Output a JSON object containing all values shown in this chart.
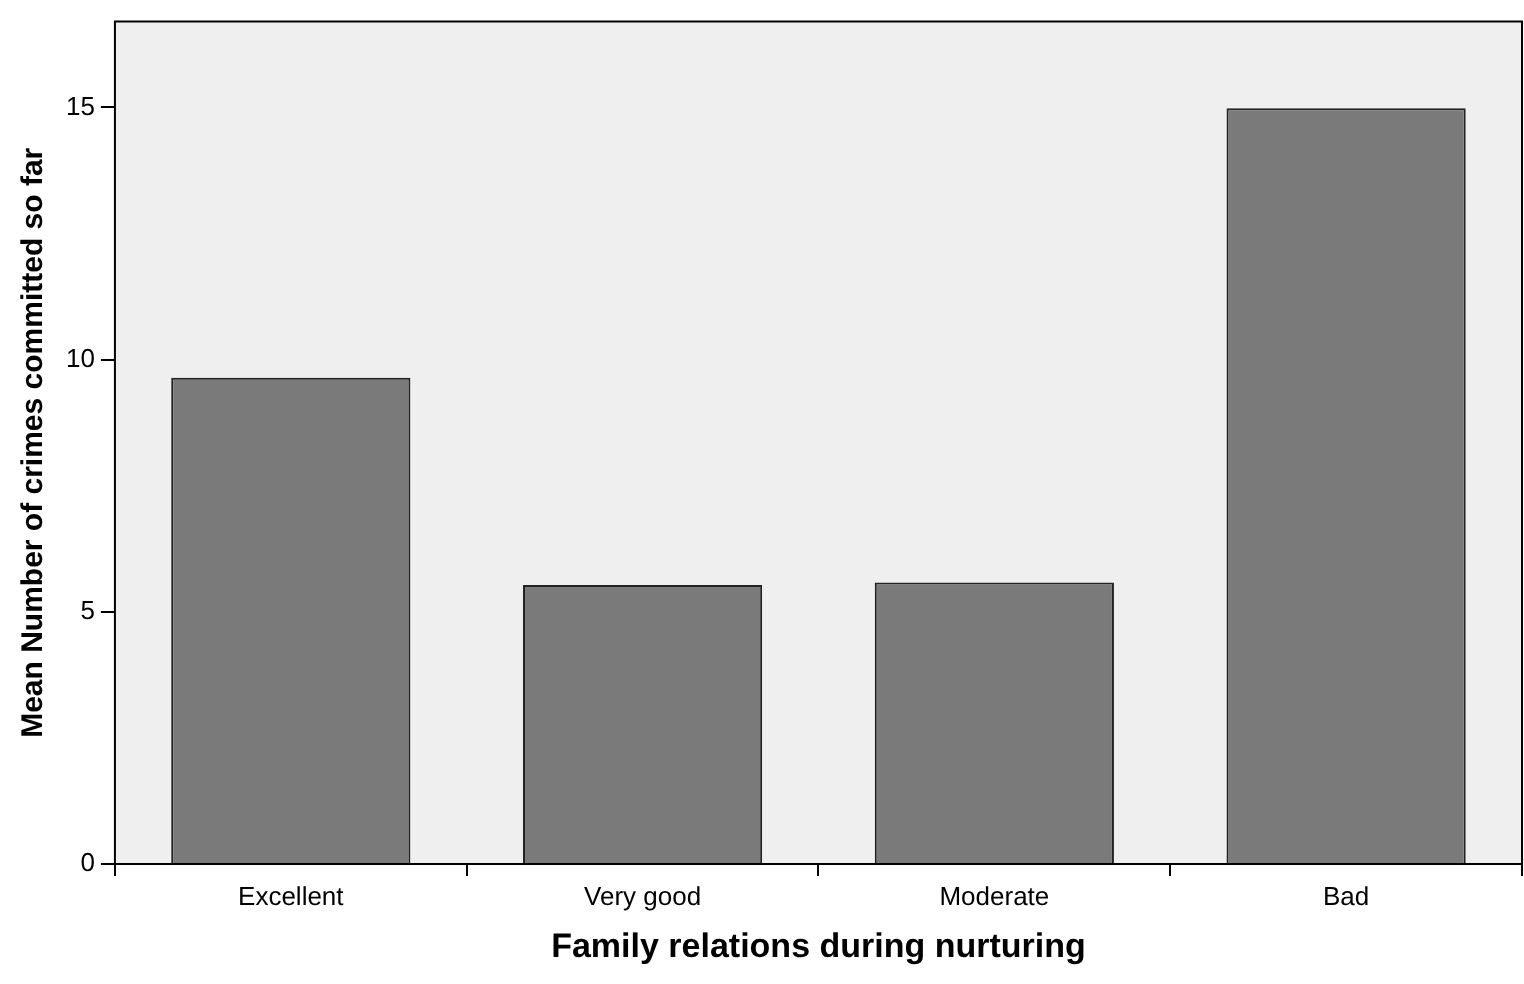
{
  "chart_data": {
    "type": "bar",
    "xlabel": "Family relations during nurturing",
    "ylabel": "Mean Number of crimes committed so far",
    "categories": [
      "Excellent",
      "Very good",
      "Moderate",
      "Bad"
    ],
    "values": [
      9.64,
      5.53,
      5.58,
      14.98
    ],
    "color": "#7a7a7a",
    "ylim": [
      0,
      16.7
    ],
    "yticks": [
      0,
      5,
      10,
      15
    ],
    "legend": false
  }
}
